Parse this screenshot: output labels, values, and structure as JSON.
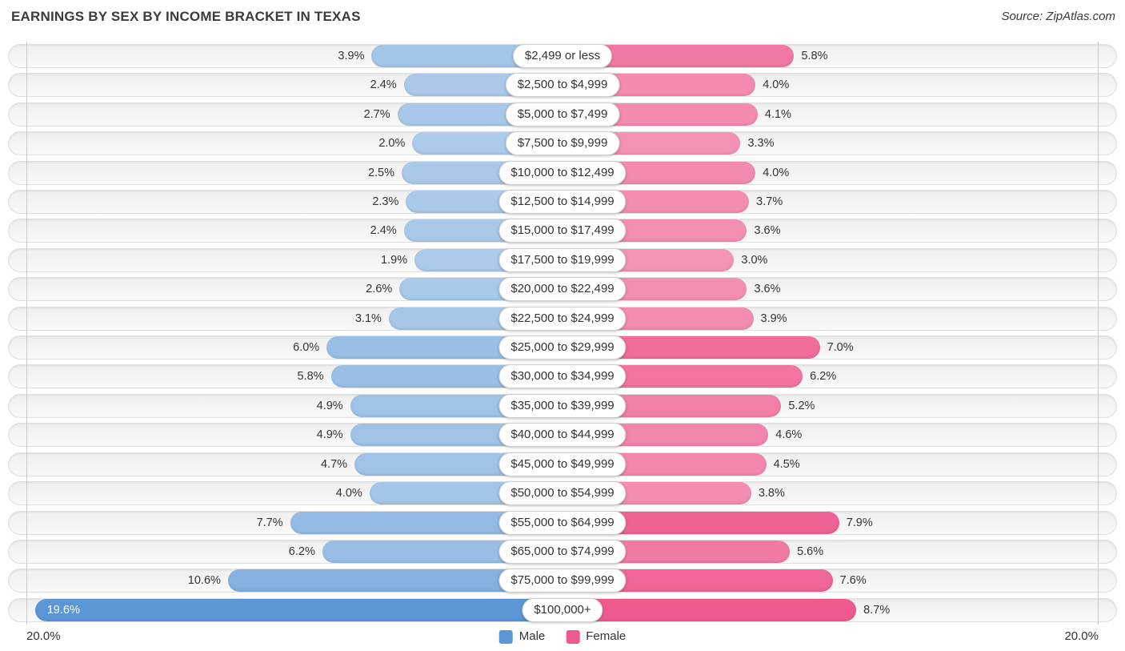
{
  "header": {
    "title": "EARNINGS BY SEX BY INCOME BRACKET IN TEXAS",
    "source": "Source: ZipAtlas.com"
  },
  "chart_data": {
    "type": "bar",
    "variant": "diverging-horizontal-tornado",
    "title": "EARNINGS BY SEX BY INCOME BRACKET IN TEXAS",
    "categories": [
      "$2,499 or less",
      "$2,500 to $4,999",
      "$5,000 to $7,499",
      "$7,500 to $9,999",
      "$10,000 to $12,499",
      "$12,500 to $14,999",
      "$15,000 to $17,499",
      "$17,500 to $19,999",
      "$20,000 to $22,499",
      "$22,500 to $24,999",
      "$25,000 to $29,999",
      "$30,000 to $34,999",
      "$35,000 to $39,999",
      "$40,000 to $44,999",
      "$45,000 to $49,999",
      "$50,000 to $54,999",
      "$55,000 to $64,999",
      "$65,000 to $74,999",
      "$75,000 to $99,999",
      "$100,000+"
    ],
    "series": [
      {
        "name": "Male",
        "direction": "left",
        "color": "#5b97d5",
        "values": [
          3.9,
          2.4,
          2.7,
          2.0,
          2.5,
          2.3,
          2.4,
          1.9,
          2.6,
          3.1,
          6.0,
          5.8,
          4.9,
          4.9,
          4.7,
          4.0,
          7.7,
          6.2,
          10.6,
          19.6
        ]
      },
      {
        "name": "Female",
        "direction": "right",
        "color": "#ee5a8f",
        "values": [
          5.8,
          4.0,
          4.1,
          3.3,
          4.0,
          3.7,
          3.6,
          3.0,
          3.6,
          3.9,
          7.0,
          6.2,
          5.2,
          4.6,
          4.5,
          3.8,
          7.9,
          5.6,
          7.6,
          8.7
        ]
      }
    ],
    "value_suffix": "%",
    "axis": {
      "min": 0,
      "max": 20.0,
      "left_label": "20.0%",
      "right_label": "20.0%"
    },
    "legend": {
      "position": "bottom-center",
      "entries": [
        "Male",
        "Female"
      ]
    },
    "grid": "edge-gridlines-only"
  }
}
